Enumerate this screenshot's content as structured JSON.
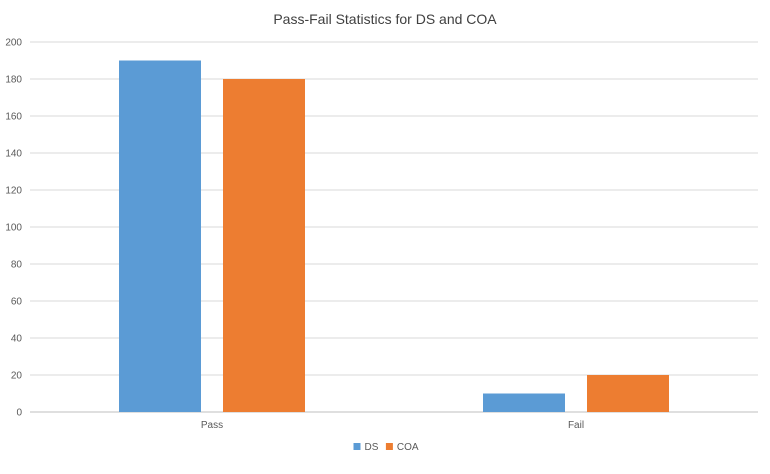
{
  "chart_data": {
    "type": "bar",
    "title": "Pass-Fail Statistics for DS and COA",
    "categories": [
      "Pass",
      "Fail"
    ],
    "series": [
      {
        "name": "DS",
        "values": [
          190,
          10
        ],
        "color": "#5b9bd5"
      },
      {
        "name": "COA",
        "values": [
          180,
          20
        ],
        "color": "#ed7d31"
      }
    ],
    "ylim": [
      0,
      200
    ],
    "yticks": [
      0,
      20,
      40,
      60,
      80,
      100,
      120,
      140,
      160,
      180,
      200
    ],
    "grid": true,
    "legend_position": "bottom"
  }
}
